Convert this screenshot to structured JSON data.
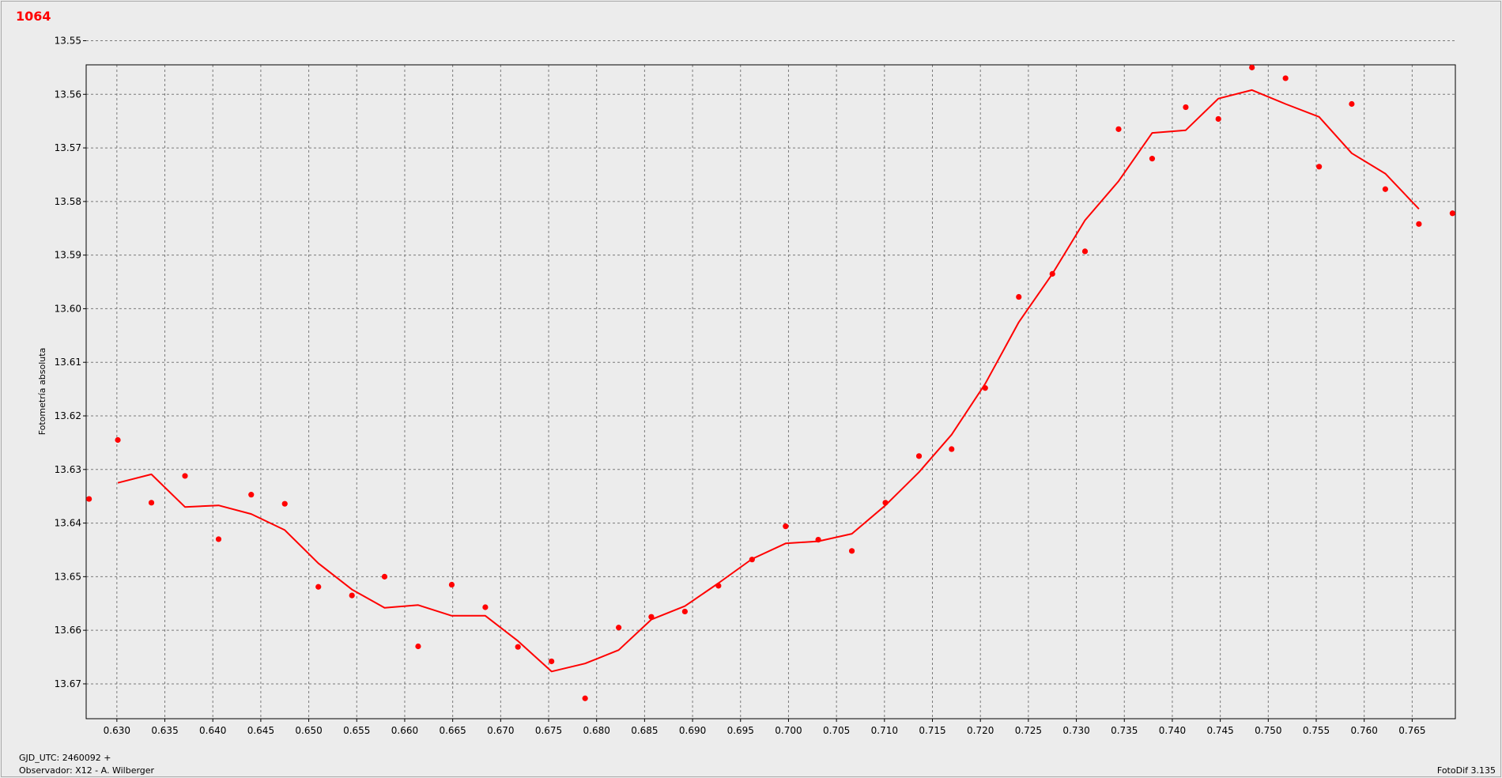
{
  "chart_data": {
    "type": "scatter",
    "title": "1064",
    "ylabel": "Fotometría absoluta",
    "xlabel": "",
    "xlim": [
      0.6268,
      0.7695
    ],
    "ylim": [
      13.5545,
      13.6765
    ],
    "y_inverted": true,
    "grid": true,
    "x_ticks": [
      "0.630",
      "0.635",
      "0.640",
      "0.645",
      "0.650",
      "0.655",
      "0.660",
      "0.665",
      "0.670",
      "0.675",
      "0.680",
      "0.685",
      "0.690",
      "0.695",
      "0.700",
      "0.705",
      "0.710",
      "0.715",
      "0.720",
      "0.725",
      "0.730",
      "0.735",
      "0.740",
      "0.745",
      "0.750",
      "0.755",
      "0.760",
      "0.765"
    ],
    "y_ticks": [
      "13.55",
      "13.56",
      "13.57",
      "13.58",
      "13.59",
      "13.60",
      "13.61",
      "13.62",
      "13.63",
      "13.64",
      "13.65",
      "13.66",
      "13.67"
    ],
    "series": [
      {
        "mode": "markers",
        "color": "#ff0000",
        "x": [
          0.6271,
          0.6301,
          0.6336,
          0.6371,
          0.6406,
          0.644,
          0.6475,
          0.651,
          0.6545,
          0.6579,
          0.6614,
          0.6649,
          0.6684,
          0.6718,
          0.6753,
          0.6788,
          0.6823,
          0.6857,
          0.6892,
          0.6927,
          0.6962,
          0.6997,
          0.7031,
          0.7066,
          0.7101,
          0.7136,
          0.717,
          0.7205,
          0.724,
          0.7275,
          0.7309,
          0.7344,
          0.7379,
          0.7414,
          0.7448,
          0.7483,
          0.7518,
          0.7553,
          0.7587,
          0.7622,
          0.7657,
          0.7692
        ],
        "y": [
          13.6355,
          13.6245,
          13.6362,
          13.6312,
          13.643,
          13.6347,
          13.6364,
          13.6519,
          13.6535,
          13.65,
          13.663,
          13.6515,
          13.6557,
          13.6631,
          13.6658,
          13.6727,
          13.6595,
          13.6575,
          13.6565,
          13.6517,
          13.6468,
          13.6406,
          13.6431,
          13.6452,
          13.6362,
          13.6275,
          13.6262,
          13.6148,
          13.5978,
          13.5935,
          13.5893,
          13.5665,
          13.572,
          13.5624,
          13.5646,
          13.555,
          13.557,
          13.5735,
          13.5618,
          13.5777,
          13.5842,
          13.5822
        ]
      },
      {
        "mode": "line",
        "color": "#ff0000",
        "x": [
          0.6301,
          0.6336,
          0.6371,
          0.6406,
          0.644,
          0.6475,
          0.651,
          0.6545,
          0.6579,
          0.6614,
          0.6649,
          0.6684,
          0.6718,
          0.6753,
          0.6788,
          0.6823,
          0.6857,
          0.6892,
          0.6927,
          0.6962,
          0.6997,
          0.7031,
          0.7066,
          0.7101,
          0.7136,
          0.717,
          0.7205,
          0.724,
          0.7275,
          0.7309,
          0.7344,
          0.7379,
          0.7414,
          0.7448,
          0.7483,
          0.7518,
          0.7553,
          0.7587,
          0.7622,
          0.7657
        ],
        "y": [
          13.6325,
          13.6309,
          13.637,
          13.6367,
          13.6383,
          13.6413,
          13.6475,
          13.6524,
          13.6558,
          13.6553,
          13.6573,
          13.6573,
          13.662,
          13.6677,
          13.6662,
          13.6637,
          13.658,
          13.6555,
          13.6512,
          13.6467,
          13.6438,
          13.6434,
          13.642,
          13.6367,
          13.6305,
          13.6235,
          13.614,
          13.6025,
          13.5935,
          13.5835,
          13.5762,
          13.5672,
          13.5667,
          13.5608,
          13.5592,
          13.5618,
          13.5642,
          13.571,
          13.5748,
          13.5814
        ]
      }
    ]
  },
  "footer": {
    "gjd": "GJD_UTC: 2460092 +",
    "observer": "Observador: X12 - A. Wilberger",
    "software": "FotoDif 3.135"
  }
}
